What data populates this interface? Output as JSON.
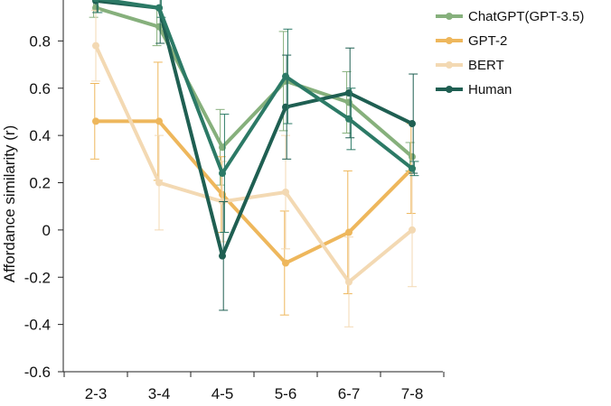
{
  "chart_data": {
    "type": "line",
    "categories": [
      "2-3",
      "3-4",
      "4-5",
      "5-6",
      "6-7",
      "7-8"
    ],
    "ylabel": "Affordance similarity (r)",
    "xlabel": "",
    "ylim": [
      -0.6,
      1.0
    ],
    "yticks": [
      "-0.6",
      "-0.4",
      "-0.2",
      "0",
      "0.2",
      "0.4",
      "0.6",
      "0.8"
    ],
    "legend_position": "top-right",
    "series": [
      {
        "name": "ChatGPT(GPT-3.5)",
        "color": "#86b07c",
        "values": [
          0.94,
          0.86,
          0.35,
          0.63,
          0.54,
          0.31
        ],
        "errors": [
          0.04,
          0.08,
          0.16,
          0.21,
          0.13,
          0.06
        ]
      },
      {
        "name": "GPT-2",
        "color": "#eeb75c",
        "values": [
          0.46,
          0.46,
          0.15,
          -0.14,
          -0.01,
          0.26
        ],
        "errors": [
          0.16,
          0.25,
          0.16,
          0.22,
          0.26,
          0.19
        ]
      },
      {
        "name": "BERT",
        "color": "#f3d9b3",
        "values": [
          0.78,
          0.2,
          0.12,
          0.16,
          -0.22,
          0.0
        ],
        "errors": [
          0.15,
          0.2,
          0.17,
          0.24,
          0.19,
          0.24
        ]
      },
      {
        "name": "Human",
        "color": "#1f5f52",
        "values": [
          0.97,
          0.94,
          -0.11,
          0.52,
          0.58,
          0.45
        ],
        "errors": [
          0.05,
          0.15,
          0.23,
          0.22,
          0.19,
          0.21
        ]
      },
      {
        "name": "",
        "color": "#2c7a66",
        "values": [
          0.98,
          0.94,
          0.24,
          0.65,
          0.47,
          0.26
        ],
        "errors": [
          0.06,
          0.04,
          0.25,
          0.2,
          0.13,
          0.03
        ]
      }
    ]
  }
}
